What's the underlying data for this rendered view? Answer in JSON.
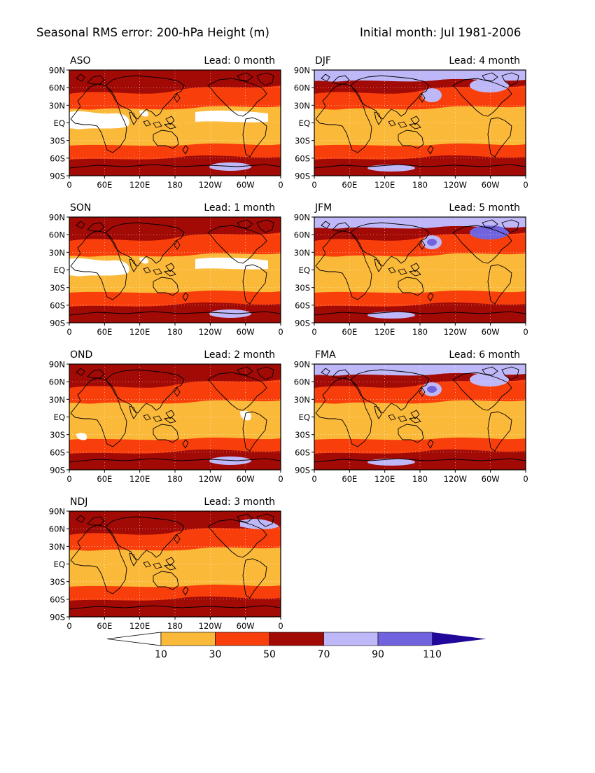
{
  "header": {
    "title": "Seasonal RMS error: 200-hPa Height (m)",
    "initial": "Initial month: Jul 1981-2006"
  },
  "lat_ticks": [
    "90N",
    "60N",
    "30N",
    "EQ",
    "30S",
    "60S",
    "90S"
  ],
  "lon_ticks": [
    "0",
    "60E",
    "120E",
    "180",
    "120W",
    "60W",
    "0"
  ],
  "lead_prefix": "Lead:",
  "lead_suffix": "month",
  "panels": [
    {
      "season": "ASO",
      "lead": "0"
    },
    {
      "season": "DJF",
      "lead": "4"
    },
    {
      "season": "SON",
      "lead": "1"
    },
    {
      "season": "JFM",
      "lead": "5"
    },
    {
      "season": "OND",
      "lead": "2"
    },
    {
      "season": "FMA",
      "lead": "6"
    },
    {
      "season": "NDJ",
      "lead": "3"
    }
  ],
  "colorbar": {
    "levels": [
      "10",
      "30",
      "50",
      "70",
      "90",
      "110"
    ],
    "colors": [
      "#ffffff",
      "#fbb93a",
      "#f83f0b",
      "#a20a06",
      "#bfb8f8",
      "#7163dd",
      "#21079a"
    ]
  }
}
